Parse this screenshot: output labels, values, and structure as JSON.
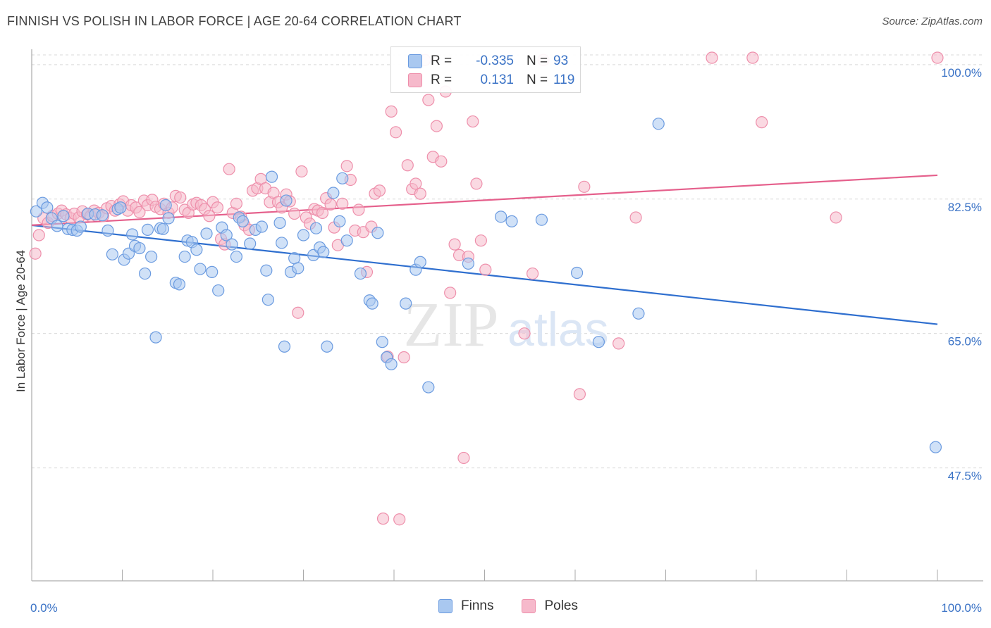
{
  "header": {
    "title": "FINNISH VS POLISH IN LABOR FORCE | AGE 20-64 CORRELATION CHART",
    "source": "Source: ZipAtlas.com"
  },
  "watermark": {
    "zip": "ZIP",
    "atlas": "atlas"
  },
  "legend": {
    "rows": [
      {
        "r_label": "R =",
        "r_value": "-0.335",
        "n_label": "N =",
        "n_value": "93",
        "color": "#a9c8f0"
      },
      {
        "r_label": "R =",
        "r_value": "0.131",
        "n_label": "N =",
        "n_value": "119",
        "color": "#f6b9cb"
      }
    ]
  },
  "bottom_legend": {
    "items": [
      {
        "label": "Finns"
      },
      {
        "label": "Poles"
      }
    ]
  },
  "colors": {
    "finns_fill": "#a9c8f0",
    "finns_stroke": "#6b9be0",
    "finns_line": "#2f6fcf",
    "poles_fill": "#f6b9cb",
    "poles_stroke": "#ee8fab",
    "poles_line": "#e5608c",
    "grid": "#d9d9d9",
    "axis_text": "#3b73c6"
  },
  "chart_data": {
    "type": "scatter",
    "title": "FINNISH VS POLISH IN LABOR FORCE | AGE 20-64 CORRELATION CHART",
    "xlabel": "",
    "ylabel": "In Labor Force | Age 20-64",
    "xlim": [
      0,
      100
    ],
    "ylim": [
      32.8,
      102
    ],
    "x_tick_labels": [
      "0.0%",
      "100.0%"
    ],
    "y_ticks": [
      {
        "value": 100.0,
        "label": "100.0%"
      },
      {
        "value": 82.5,
        "label": "82.5%"
      },
      {
        "value": 65.0,
        "label": "65.0%"
      },
      {
        "value": 47.5,
        "label": "47.5%"
      }
    ],
    "grid": true,
    "legend_position": "top-center",
    "series": [
      {
        "name": "Finns",
        "r": -0.335,
        "n": 93,
        "trend": {
          "x": [
            0,
            100
          ],
          "y": [
            79.1,
            66.2
          ]
        },
        "points": [
          [
            0.5,
            80.9
          ],
          [
            1.2,
            82.0
          ],
          [
            1.7,
            81.4
          ],
          [
            2.2,
            80.0
          ],
          [
            2.8,
            79.0
          ],
          [
            3.5,
            80.3
          ],
          [
            4.0,
            78.6
          ],
          [
            4.5,
            78.5
          ],
          [
            5.0,
            78.4
          ],
          [
            5.4,
            78.9
          ],
          [
            6.2,
            80.6
          ],
          [
            7.0,
            80.5
          ],
          [
            7.8,
            80.4
          ],
          [
            8.4,
            78.4
          ],
          [
            8.9,
            75.3
          ],
          [
            9.5,
            81.2
          ],
          [
            9.8,
            81.4
          ],
          [
            10.2,
            74.6
          ],
          [
            10.7,
            75.4
          ],
          [
            11.1,
            77.9
          ],
          [
            11.4,
            76.4
          ],
          [
            11.9,
            76.1
          ],
          [
            12.5,
            72.8
          ],
          [
            12.8,
            78.5
          ],
          [
            13.2,
            75.0
          ],
          [
            13.7,
            64.5
          ],
          [
            14.2,
            78.7
          ],
          [
            14.5,
            78.6
          ],
          [
            14.8,
            81.7
          ],
          [
            15.1,
            80.0
          ],
          [
            15.9,
            71.6
          ],
          [
            16.3,
            71.4
          ],
          [
            16.9,
            75.0
          ],
          [
            17.2,
            77.1
          ],
          [
            17.7,
            76.9
          ],
          [
            18.2,
            75.9
          ],
          [
            18.6,
            73.4
          ],
          [
            19.3,
            78.0
          ],
          [
            19.9,
            73.0
          ],
          [
            20.6,
            70.6
          ],
          [
            21.0,
            78.8
          ],
          [
            21.5,
            77.8
          ],
          [
            22.1,
            76.6
          ],
          [
            22.6,
            75.0
          ],
          [
            22.9,
            80.1
          ],
          [
            23.3,
            79.6
          ],
          [
            24.1,
            76.7
          ],
          [
            24.7,
            78.5
          ],
          [
            25.4,
            78.9
          ],
          [
            25.9,
            73.2
          ],
          [
            26.1,
            69.4
          ],
          [
            26.5,
            85.4
          ],
          [
            27.4,
            79.4
          ],
          [
            27.6,
            76.8
          ],
          [
            27.9,
            63.3
          ],
          [
            28.1,
            82.3
          ],
          [
            28.6,
            73.0
          ],
          [
            29.0,
            74.8
          ],
          [
            29.4,
            73.5
          ],
          [
            30.0,
            77.8
          ],
          [
            31.1,
            75.2
          ],
          [
            31.4,
            78.7
          ],
          [
            31.8,
            76.2
          ],
          [
            32.2,
            75.6
          ],
          [
            32.6,
            63.3
          ],
          [
            33.3,
            83.3
          ],
          [
            34.0,
            79.6
          ],
          [
            34.3,
            85.2
          ],
          [
            34.8,
            77.1
          ],
          [
            36.3,
            72.8
          ],
          [
            37.3,
            69.3
          ],
          [
            37.6,
            68.9
          ],
          [
            38.2,
            78.1
          ],
          [
            38.7,
            63.9
          ],
          [
            39.2,
            61.9
          ],
          [
            39.7,
            61.0
          ],
          [
            41.3,
            68.9
          ],
          [
            42.4,
            73.3
          ],
          [
            42.9,
            74.3
          ],
          [
            43.8,
            58.0
          ],
          [
            48.2,
            74.1
          ],
          [
            51.8,
            80.2
          ],
          [
            53.0,
            79.6
          ],
          [
            56.3,
            79.8
          ],
          [
            60.2,
            72.9
          ],
          [
            62.6,
            63.9
          ],
          [
            67.0,
            67.6
          ],
          [
            69.2,
            92.3
          ],
          [
            99.8,
            50.2
          ]
        ]
      },
      {
        "name": "Poles",
        "r": 0.131,
        "n": 119,
        "trend": {
          "x": [
            0,
            100
          ],
          "y": [
            79.1,
            85.6
          ]
        },
        "points": [
          [
            0.4,
            75.4
          ],
          [
            0.8,
            77.8
          ],
          [
            1.3,
            80.0
          ],
          [
            1.8,
            79.4
          ],
          [
            2.3,
            80.3
          ],
          [
            2.9,
            80.6
          ],
          [
            3.3,
            81.0
          ],
          [
            3.8,
            80.5
          ],
          [
            4.3,
            80.0
          ],
          [
            4.7,
            80.6
          ],
          [
            5.2,
            80.1
          ],
          [
            5.6,
            80.9
          ],
          [
            6.1,
            80.5
          ],
          [
            6.5,
            80.3
          ],
          [
            6.9,
            81.0
          ],
          [
            7.4,
            80.7
          ],
          [
            7.9,
            80.3
          ],
          [
            8.3,
            81.3
          ],
          [
            8.8,
            81.6
          ],
          [
            9.2,
            81.0
          ],
          [
            9.7,
            81.8
          ],
          [
            10.1,
            82.2
          ],
          [
            10.6,
            81.0
          ],
          [
            11.0,
            81.7
          ],
          [
            11.5,
            81.4
          ],
          [
            11.9,
            80.8
          ],
          [
            12.4,
            82.3
          ],
          [
            12.8,
            81.7
          ],
          [
            13.3,
            82.4
          ],
          [
            13.7,
            81.5
          ],
          [
            14.2,
            81.2
          ],
          [
            14.6,
            81.9
          ],
          [
            15.1,
            80.7
          ],
          [
            15.5,
            81.4
          ],
          [
            15.9,
            82.9
          ],
          [
            16.4,
            82.7
          ],
          [
            16.9,
            81.1
          ],
          [
            17.3,
            80.7
          ],
          [
            17.8,
            81.8
          ],
          [
            18.2,
            82.0
          ],
          [
            18.7,
            81.7
          ],
          [
            19.1,
            81.2
          ],
          [
            19.6,
            80.3
          ],
          [
            20.0,
            82.1
          ],
          [
            20.5,
            81.4
          ],
          [
            20.9,
            77.3
          ],
          [
            21.3,
            76.6
          ],
          [
            21.8,
            86.4
          ],
          [
            22.2,
            80.7
          ],
          [
            22.6,
            81.9
          ],
          [
            23.1,
            80.2
          ],
          [
            23.5,
            79.1
          ],
          [
            24.0,
            78.5
          ],
          [
            24.4,
            83.6
          ],
          [
            24.9,
            83.9
          ],
          [
            25.3,
            85.1
          ],
          [
            25.8,
            83.9
          ],
          [
            26.3,
            82.1
          ],
          [
            26.7,
            83.3
          ],
          [
            27.2,
            82.1
          ],
          [
            27.6,
            81.4
          ],
          [
            28.1,
            83.1
          ],
          [
            28.5,
            82.2
          ],
          [
            29.0,
            80.6
          ],
          [
            29.4,
            67.7
          ],
          [
            29.8,
            86.1
          ],
          [
            30.3,
            80.1
          ],
          [
            30.7,
            79.3
          ],
          [
            31.2,
            81.2
          ],
          [
            31.6,
            81.0
          ],
          [
            32.1,
            80.7
          ],
          [
            32.5,
            82.6
          ],
          [
            33.0,
            81.8
          ],
          [
            33.4,
            78.8
          ],
          [
            33.8,
            76.5
          ],
          [
            34.3,
            81.9
          ],
          [
            34.8,
            86.8
          ],
          [
            35.2,
            85.0
          ],
          [
            35.7,
            78.4
          ],
          [
            36.1,
            81.1
          ],
          [
            36.6,
            78.2
          ],
          [
            37.0,
            73.0
          ],
          [
            37.5,
            78.9
          ],
          [
            37.9,
            83.2
          ],
          [
            38.4,
            83.6
          ],
          [
            38.8,
            40.9
          ],
          [
            39.3,
            62.0
          ],
          [
            39.7,
            93.9
          ],
          [
            40.2,
            91.2
          ],
          [
            40.6,
            40.8
          ],
          [
            41.1,
            61.9
          ],
          [
            41.5,
            86.9
          ],
          [
            42.0,
            83.8
          ],
          [
            42.4,
            84.5
          ],
          [
            42.9,
            83.2
          ],
          [
            43.4,
            100.6
          ],
          [
            43.8,
            95.4
          ],
          [
            44.3,
            88.0
          ],
          [
            44.7,
            92.0
          ],
          [
            45.2,
            87.4
          ],
          [
            45.7,
            96.5
          ],
          [
            46.2,
            70.3
          ],
          [
            46.7,
            76.6
          ],
          [
            47.2,
            75.2
          ],
          [
            47.7,
            48.8
          ],
          [
            48.2,
            75.0
          ],
          [
            48.7,
            92.6
          ],
          [
            49.1,
            84.5
          ],
          [
            49.6,
            77.1
          ],
          [
            50.1,
            73.3
          ],
          [
            54.4,
            65.0
          ],
          [
            55.3,
            72.8
          ],
          [
            56.5,
            100.6
          ],
          [
            60.5,
            57.1
          ],
          [
            61.0,
            84.1
          ],
          [
            64.8,
            63.7
          ],
          [
            66.7,
            80.1
          ],
          [
            75.1,
            100.9
          ],
          [
            79.6,
            100.9
          ],
          [
            80.6,
            92.5
          ],
          [
            88.8,
            80.1
          ],
          [
            100.0,
            100.9
          ]
        ]
      }
    ]
  }
}
